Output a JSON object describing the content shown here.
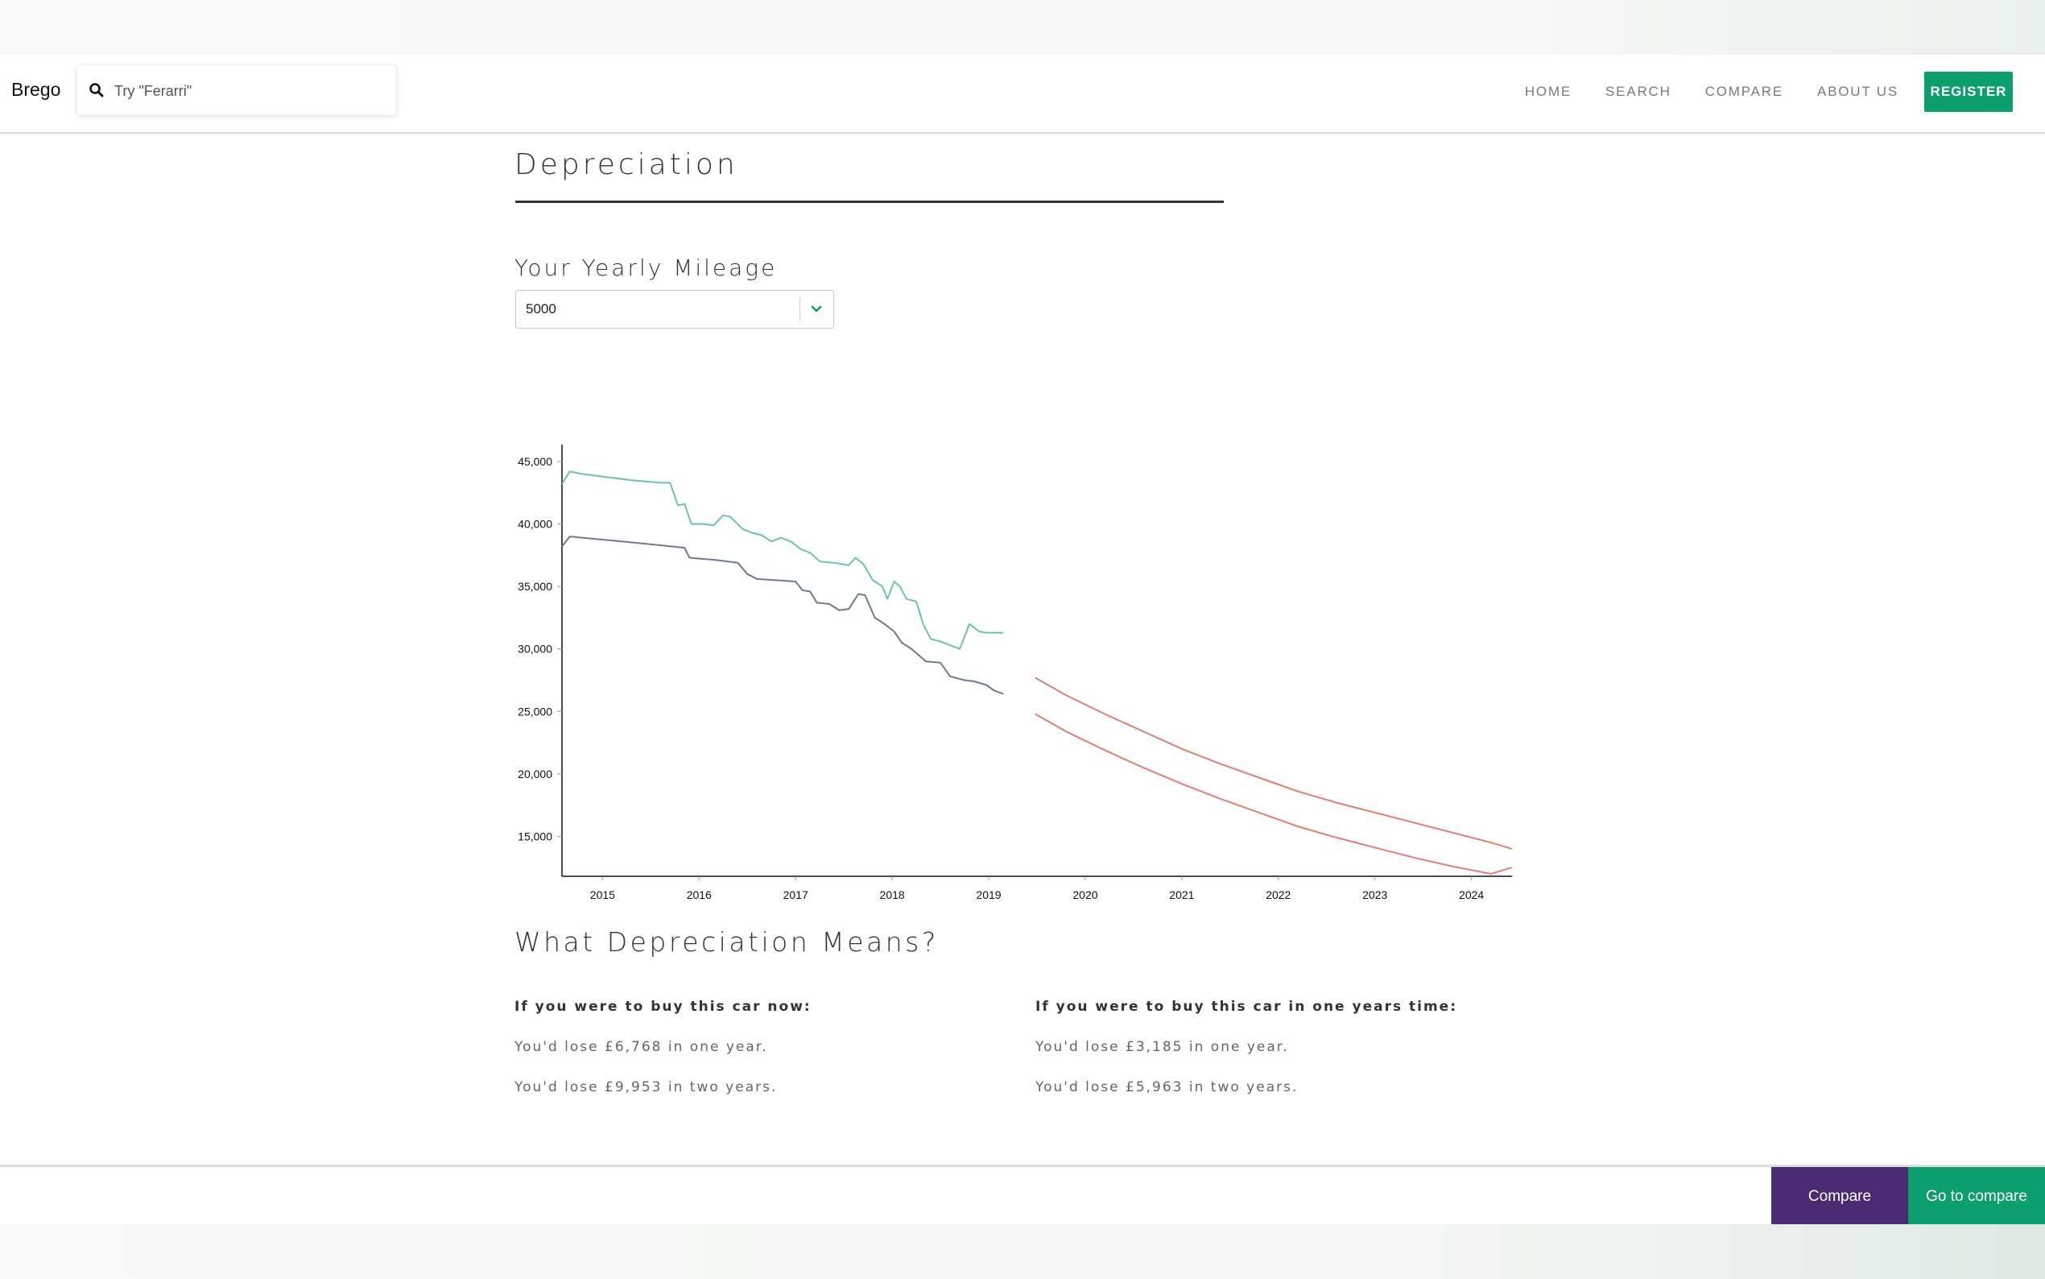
{
  "navbar": {
    "brand": "Brego",
    "search_placeholder": "Try \"Ferarri\"",
    "links": [
      "HOME",
      "SEARCH",
      "COMPARE",
      "ABOUT US"
    ],
    "register_label": "REGISTER",
    "accent_color": "#0c9e6e"
  },
  "section": {
    "title": "Depreciation",
    "mileage_label": "Your Yearly Mileage",
    "mileage_value": "5000"
  },
  "chart_data": {
    "type": "line",
    "title": "",
    "xlabel": "",
    "ylabel": "",
    "x_ticks": [
      "2015",
      "2016",
      "2017",
      "2018",
      "2019",
      "2020",
      "2021",
      "2022",
      "2023",
      "2024"
    ],
    "y_ticks": [
      "45,000",
      "40,000",
      "35,000",
      "30,000",
      "25,000",
      "20,000",
      "15,000"
    ],
    "xlim": [
      2014.58,
      2024.42
    ],
    "ylim": [
      11800,
      46100
    ],
    "grid": false,
    "series": [
      {
        "color": "#6cc59b",
        "x": [
          2014.58,
          2014.66,
          2014.8,
          2015.0,
          2015.3,
          2015.6,
          2015.7,
          2015.78,
          2015.85,
          2015.92,
          2016.05,
          2016.15,
          2016.25,
          2016.32,
          2016.45,
          2016.55,
          2016.65,
          2016.75,
          2016.85,
          2016.95,
          2017.05,
          2017.15,
          2017.25,
          2017.4,
          2017.55,
          2017.62,
          2017.7,
          2017.8,
          2017.9,
          2017.95,
          2018.02,
          2018.08,
          2018.15,
          2018.25,
          2018.32,
          2018.4,
          2018.5,
          2018.6,
          2018.7,
          2018.8,
          2018.9,
          2018.98,
          2019.05,
          2019.15
        ],
        "values": [
          43200,
          44200,
          44000,
          43800,
          43500,
          43300,
          43300,
          41500,
          41600,
          40000,
          40000,
          39900,
          40700,
          40600,
          39600,
          39300,
          39100,
          38600,
          38900,
          38600,
          38000,
          37700,
          37000,
          36900,
          36700,
          37300,
          36800,
          35500,
          35000,
          34000,
          35400,
          35000,
          34000,
          33800,
          32000,
          30800,
          30600,
          30300,
          30000,
          32000,
          31400,
          31300,
          31300,
          31300
        ]
      },
      {
        "color": "#6e7a90",
        "x": [
          2014.58,
          2014.66,
          2014.8,
          2015.2,
          2015.6,
          2015.85,
          2015.9,
          2016.2,
          2016.4,
          2016.5,
          2016.6,
          2016.8,
          2017.0,
          2017.07,
          2017.15,
          2017.22,
          2017.35,
          2017.45,
          2017.55,
          2017.65,
          2017.72,
          2017.82,
          2017.92,
          2018.02,
          2018.1,
          2018.2,
          2018.35,
          2018.5,
          2018.6,
          2018.75,
          2018.85,
          2018.98,
          2019.05,
          2019.15
        ],
        "values": [
          38200,
          39000,
          38900,
          38600,
          38300,
          38100,
          37300,
          37100,
          36900,
          36000,
          35600,
          35500,
          35400,
          34700,
          34600,
          33700,
          33600,
          33100,
          33200,
          34400,
          34300,
          32500,
          32000,
          31400,
          30500,
          30000,
          29000,
          28900,
          27800,
          27500,
          27400,
          27100,
          26700,
          26400
        ]
      },
      {
        "color": "#e37e72",
        "x": [
          2019.48,
          2019.8,
          2020.2,
          2020.6,
          2021.0,
          2021.4,
          2021.8,
          2022.2,
          2022.6,
          2023.0,
          2023.4,
          2023.8,
          2024.2,
          2024.42
        ],
        "values": [
          27700,
          26300,
          24800,
          23400,
          22000,
          20800,
          19700,
          18600,
          17700,
          16900,
          16100,
          15300,
          14500,
          14000
        ]
      },
      {
        "color": "#e37e72",
        "x": [
          2019.48,
          2019.8,
          2020.2,
          2020.6,
          2021.0,
          2021.4,
          2021.8,
          2022.2,
          2022.6,
          2023.0,
          2023.4,
          2023.8,
          2024.2,
          2024.42
        ],
        "values": [
          24800,
          23400,
          21900,
          20500,
          19200,
          18000,
          16900,
          15800,
          14900,
          14100,
          13300,
          12600,
          12000,
          12500
        ]
      }
    ]
  },
  "means": {
    "title": "What Depreciation Means?",
    "now": {
      "heading": "If you were to buy this car now:",
      "one_year": "You'd lose £6,768 in one year.",
      "two_years": "You'd lose £9,953 in two years."
    },
    "later": {
      "heading": "If you were to buy this car in one years time:",
      "one_year": "You'd lose £3,185 in one year.",
      "two_years": "You'd lose £5,963 in two years."
    }
  },
  "footer": {
    "compare_label": "Compare",
    "goto_label": "Go to compare",
    "compare_color": "#4a2a72"
  }
}
